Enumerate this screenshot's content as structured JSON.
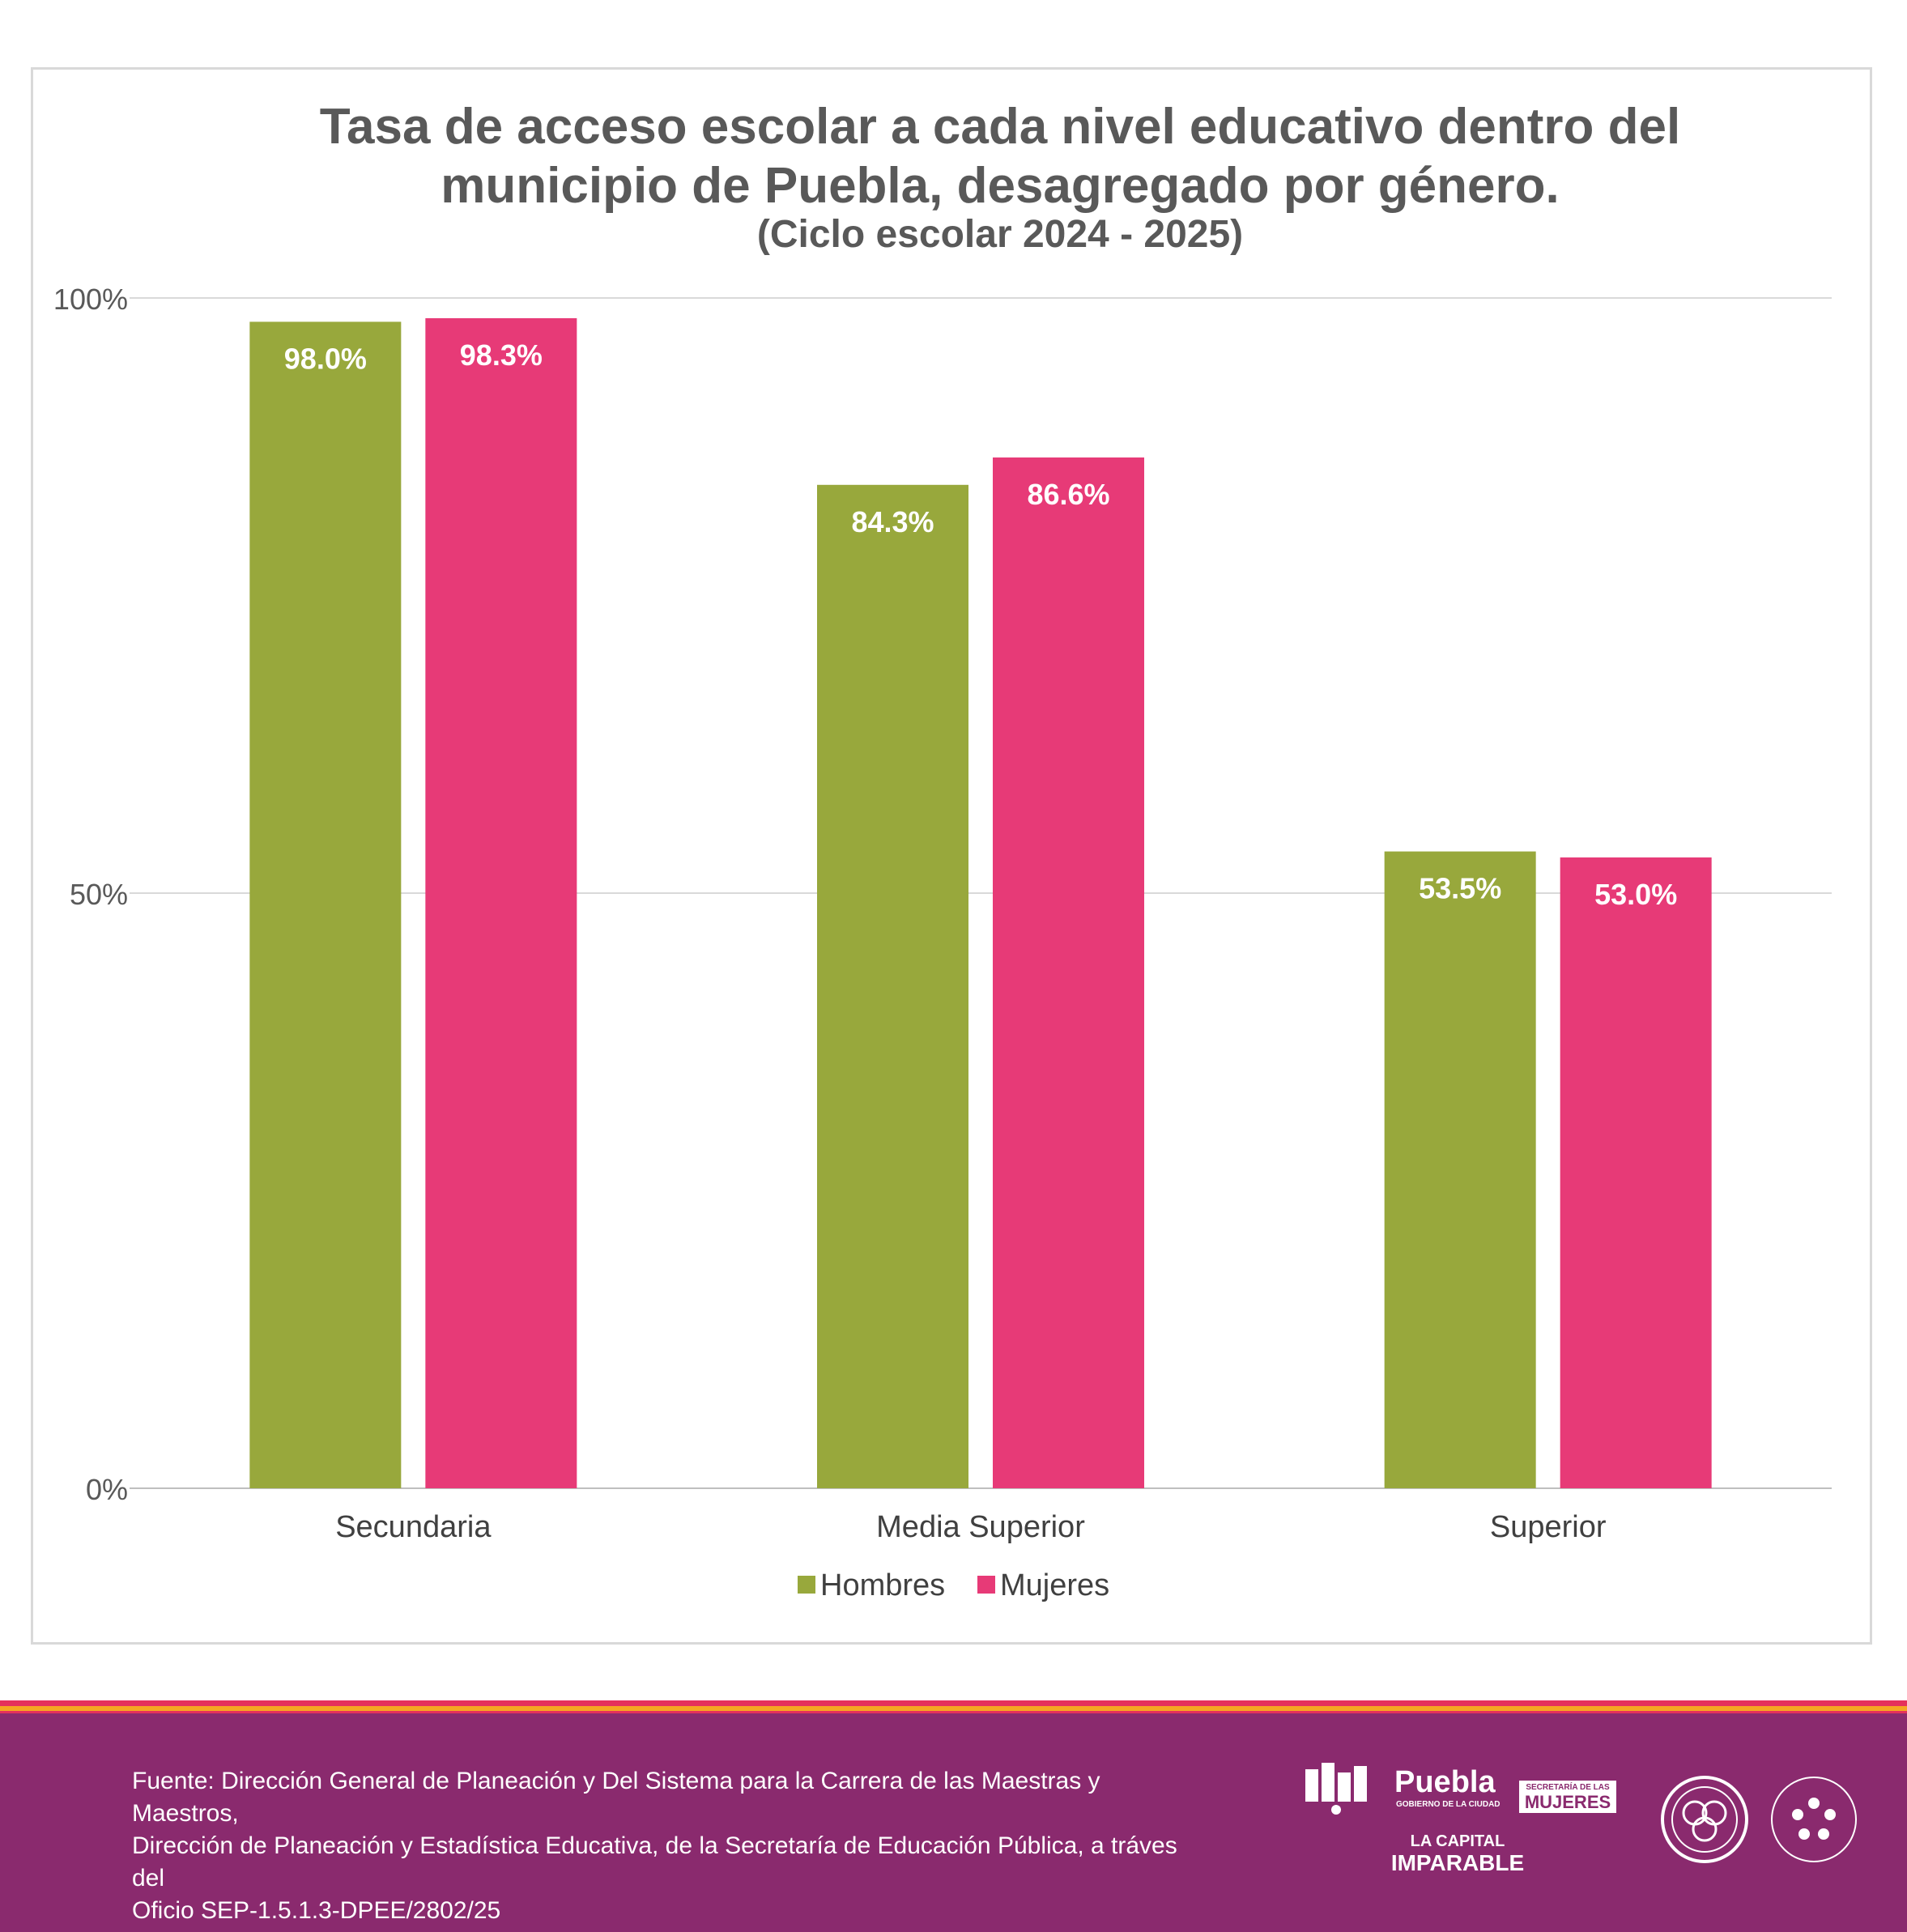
{
  "chart_data": {
    "type": "bar",
    "title": "Tasa de acceso escolar a cada nivel educativo dentro del municipio de Puebla, desagregado por género.",
    "title_lines": [
      "Tasa de acceso escolar a cada nivel educativo dentro del",
      "municipio de Puebla, desagregado por género."
    ],
    "subtitle": "(Ciclo escolar 2024 - 2025)",
    "categories": [
      "Secundaria",
      "Media Superior",
      "Superior"
    ],
    "series": [
      {
        "name": "Hombres",
        "color": "#98a83c",
        "values": [
          98.0,
          84.3,
          53.5
        ],
        "labels": [
          "98.0%",
          "84.3%",
          "53.5%"
        ]
      },
      {
        "name": "Mujeres",
        "color": "#e73a77",
        "values": [
          98.3,
          86.6,
          53.0
        ],
        "labels": [
          "98.3%",
          "86.6%",
          "53.0%"
        ]
      }
    ],
    "ylim": [
      0,
      100
    ],
    "yticks": [
      0,
      50,
      100
    ],
    "ytick_labels": [
      "0%",
      "50%",
      "100%"
    ],
    "xlabel": "",
    "ylabel": "",
    "grid": true,
    "legend": "bottom-center"
  },
  "footer": {
    "source_lines": [
      "Fuente: Dirección General de Planeación y Del Sistema para la Carrera de las Maestras y Maestros,",
      "Dirección de Planeación y Estadística Educativa, de la Secretaría de Educación Pública, a tráves del",
      "Oficio SEP-1.5.1.3-DPEE/2802/25"
    ],
    "logo_puebla": "Puebla",
    "logo_puebla_sub": "GOBIERNO DE LA CIUDAD",
    "logo_secretaria": "SECRETARÍA DE LAS",
    "logo_mujeres": "MUJERES",
    "logo_capital": "LA CAPITAL",
    "logo_imparable": "IMPARABLE",
    "colors": {
      "footer_bg": "#8a2a6e",
      "stripe_red": "#e5315c",
      "stripe_orange": "#f5a623"
    }
  }
}
